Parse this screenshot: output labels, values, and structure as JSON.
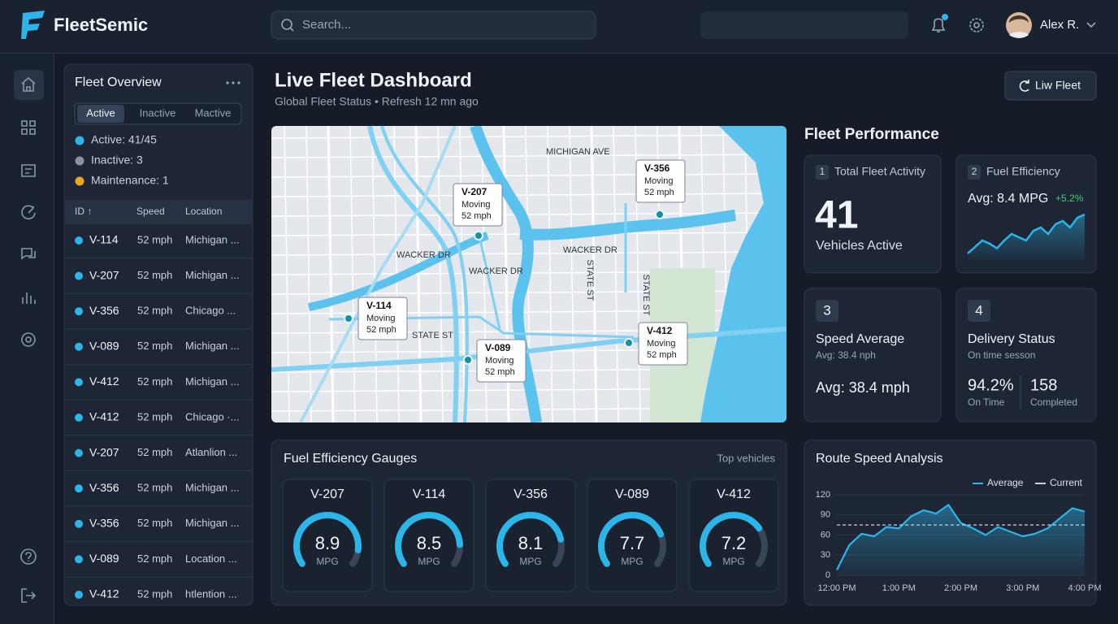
{
  "header": {
    "brand": "FleetSemic",
    "search_placeholder": "Search...",
    "user_name": "Alex R."
  },
  "fleet_overview": {
    "title": "Fleet Overview",
    "tabs": [
      "Active",
      "Inactive",
      "Mactive"
    ],
    "status": [
      {
        "label": "Active: 41/45",
        "color": "#2bb5e8"
      },
      {
        "label": "Inactive: 3",
        "color": "#8a919c"
      },
      {
        "label": "Maintenance: 1",
        "color": "#f0a51e"
      }
    ],
    "columns": [
      "ID ↑",
      "Speed",
      "Location"
    ],
    "rows": [
      [
        "V-114",
        "52 mph",
        "Michigan ..."
      ],
      [
        "V-207",
        "52 mph",
        "Michigan ..."
      ],
      [
        "V-356",
        "52 mph",
        "Chicago ..."
      ],
      [
        "V-089",
        "52 mph",
        "Michigan ..."
      ],
      [
        "V-412",
        "52 mph",
        "Michigan ..."
      ],
      [
        "V-412",
        "52 mph",
        "Chicago ·..."
      ],
      [
        "V-207",
        "52 mph",
        "Atlanlion ..."
      ],
      [
        "V-356",
        "52 mph",
        "Michigan ..."
      ],
      [
        "V-356",
        "52 mph",
        "Michigan ..."
      ],
      [
        "V-089",
        "52 mph",
        "Location ..."
      ],
      [
        "V-412",
        "52 mph",
        "htlention ..."
      ]
    ]
  },
  "dashboard": {
    "title": "Live Fleet Dashboard",
    "subtitle": "Global Fleet Status • Refresh 12 mn ago",
    "button": "Liw Fleet"
  },
  "map": {
    "streets": [
      "MICHIGAN AVE",
      "WACKER DR",
      "WACKER DR",
      "WACKER DR",
      "STATE ST",
      "STATE ST",
      "STATE ST"
    ],
    "vehicles": [
      {
        "id": "V-207",
        "status": "Moving",
        "speed": "52 mph"
      },
      {
        "id": "V-356",
        "status": "Moving",
        "speed": "52 mph"
      },
      {
        "id": "V-114",
        "status": "Moving",
        "speed": "52 mph"
      },
      {
        "id": "V-089",
        "status": "Moving",
        "speed": "52 mph"
      },
      {
        "id": "V-412",
        "status": "Moving",
        "speed": "52 mph"
      }
    ]
  },
  "performance": {
    "title": "Fleet Performance",
    "activity": {
      "badge": "1",
      "label": "Total Fleet Activity",
      "value": "41",
      "caption": "Vehicles Active"
    },
    "fuel": {
      "badge": "2",
      "label": "Fuel Efficiency",
      "value": "Avg: 8.4 MPG",
      "change": "+5.2%",
      "trend": [
        3,
        4,
        5,
        4.5,
        3.8,
        5,
        6,
        5.5,
        5,
        6.5,
        7,
        6,
        7.5,
        8,
        7,
        8.5,
        9
      ]
    },
    "speed": {
      "badge": "3",
      "label": "Speed Average",
      "sublabel": "Avg: 38.4 nph",
      "value": "Avg: 38.4 mph"
    },
    "delivery": {
      "badge": "4",
      "label": "Delivery Status",
      "sublabel": "On time sesson",
      "stats": [
        {
          "value": "94.2%",
          "label": "On Time"
        },
        {
          "value": "158",
          "label": "Completed"
        }
      ]
    }
  },
  "gauges": {
    "title": "Fuel Efficiency Gauges",
    "note": "Top vehicles",
    "range": [
      0,
      10
    ],
    "items": [
      {
        "name": "V-207",
        "value": 8.9,
        "unit": "MPG"
      },
      {
        "name": "V-114",
        "value": 8.5,
        "unit": "MPG"
      },
      {
        "name": "V-356",
        "value": 8.1,
        "unit": "MPG"
      },
      {
        "name": "V-089",
        "value": 7.7,
        "unit": "MPG"
      },
      {
        "name": "V-412",
        "value": 7.2,
        "unit": "MPG"
      }
    ]
  },
  "route_speed": {
    "type": "line",
    "title": "Route Speed Analysis",
    "categories": [
      "12:00 PM",
      null,
      null,
      null,
      null,
      "1:00 PM",
      null,
      null,
      null,
      null,
      "2:00 PM",
      null,
      null,
      null,
      null,
      "3:00 PM",
      null,
      null,
      null,
      null,
      "4:00 PM"
    ],
    "series": [
      {
        "name": "Average",
        "color": "#2bb5e8",
        "values": [
          8,
          45,
          62,
          58,
          72,
          70,
          88,
          97,
          92,
          105,
          78,
          70,
          60,
          72,
          65,
          58,
          62,
          70,
          85,
          100,
          95
        ]
      },
      {
        "name": "Current",
        "color": "#c8d0da",
        "values": [
          75,
          75,
          75,
          75,
          75,
          75,
          75,
          75,
          75,
          75,
          75,
          75,
          75,
          75,
          75,
          75,
          75,
          75,
          75,
          75,
          75
        ]
      }
    ],
    "ylim": [
      0,
      120
    ],
    "yticks": [
      0,
      30,
      60,
      90,
      120
    ],
    "grid": true
  }
}
